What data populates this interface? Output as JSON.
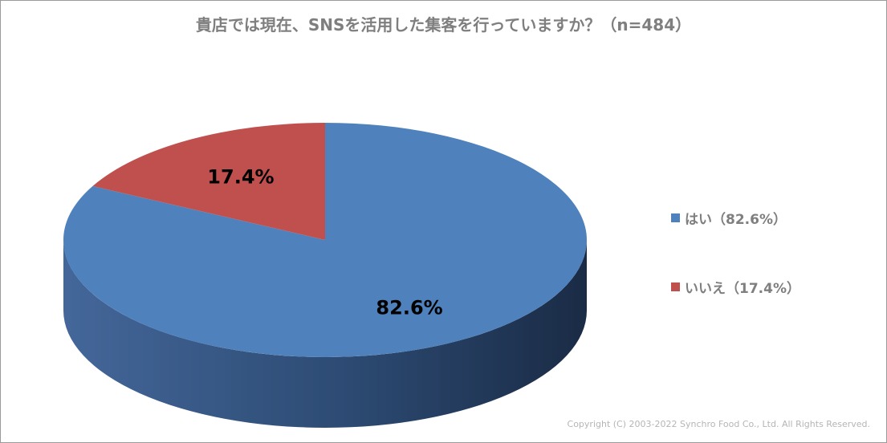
{
  "chart_data": {
    "type": "pie",
    "title": "貴店では現在、SNSを活用した集客を行っていますか？（n=484）",
    "slices": [
      {
        "label": "はい",
        "value": 82.6,
        "display": "82.6%",
        "legend": "はい（82.6%）",
        "color": "#4f81bd",
        "side_color": "#2c4a72"
      },
      {
        "label": "いいえ",
        "value": 17.4,
        "display": "17.4%",
        "legend": "いいえ（17.4%）",
        "color": "#c0504d",
        "side_color": "#7a2f2d"
      }
    ],
    "legend_position": "right",
    "style": "3d"
  },
  "footer": {
    "copyright": "Copyright (C) 2003-2022  Synchro Food Co., Ltd. All Rights Reserved."
  }
}
